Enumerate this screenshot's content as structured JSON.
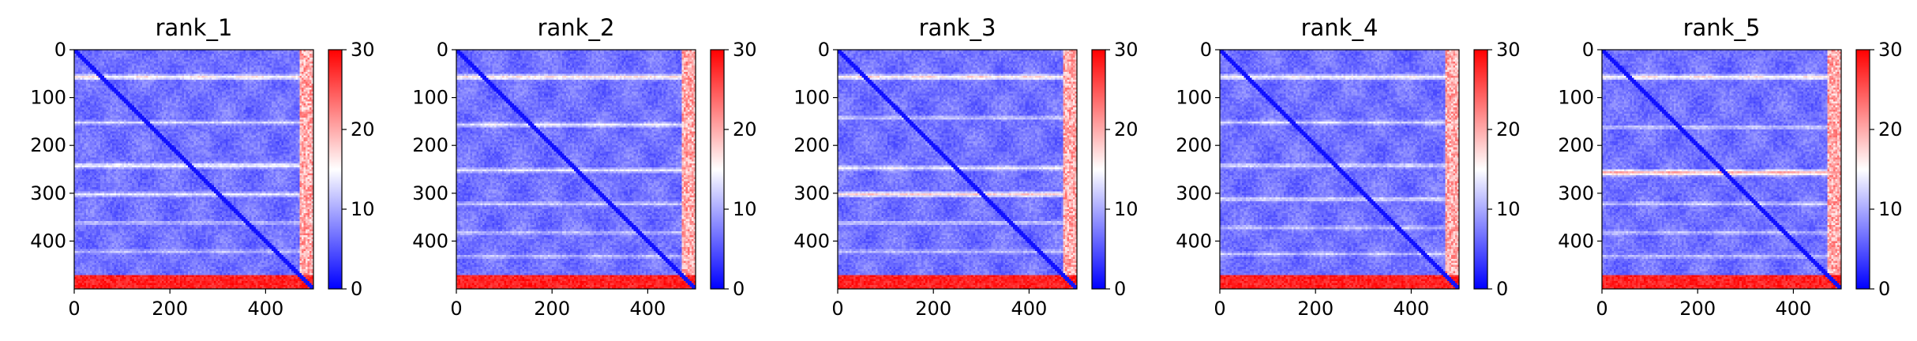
{
  "chart_data": [
    {
      "type": "heatmap",
      "title": "rank_1",
      "xlabel": "",
      "ylabel": "",
      "xlim": [
        0,
        500
      ],
      "ylim": [
        500,
        0
      ],
      "x_ticks": [
        "0",
        "200",
        "400"
      ],
      "y_ticks": [
        "0",
        "100",
        "200",
        "300",
        "400"
      ],
      "colorbar": {
        "range": [
          0,
          30
        ],
        "ticks": [
          "0",
          "10",
          "20",
          "30"
        ],
        "colormap": "bwr"
      },
      "grid": false
    },
    {
      "type": "heatmap",
      "title": "rank_2",
      "xlabel": "",
      "ylabel": "",
      "xlim": [
        0,
        500
      ],
      "ylim": [
        500,
        0
      ],
      "x_ticks": [
        "0",
        "200",
        "400"
      ],
      "y_ticks": [
        "0",
        "100",
        "200",
        "300",
        "400"
      ],
      "colorbar": {
        "range": [
          0,
          30
        ],
        "ticks": [
          "0",
          "10",
          "20",
          "30"
        ],
        "colormap": "bwr"
      },
      "grid": false
    },
    {
      "type": "heatmap",
      "title": "rank_3",
      "xlabel": "",
      "ylabel": "",
      "xlim": [
        0,
        500
      ],
      "ylim": [
        500,
        0
      ],
      "x_ticks": [
        "0",
        "200",
        "400"
      ],
      "y_ticks": [
        "0",
        "100",
        "200",
        "300",
        "400"
      ],
      "colorbar": {
        "range": [
          0,
          30
        ],
        "ticks": [
          "0",
          "10",
          "20",
          "30"
        ],
        "colormap": "bwr"
      },
      "grid": false
    },
    {
      "type": "heatmap",
      "title": "rank_4",
      "xlabel": "",
      "ylabel": "",
      "xlim": [
        0,
        500
      ],
      "ylim": [
        500,
        0
      ],
      "x_ticks": [
        "0",
        "200",
        "400"
      ],
      "y_ticks": [
        "0",
        "100",
        "200",
        "300",
        "400"
      ],
      "colorbar": {
        "range": [
          0,
          30
        ],
        "ticks": [
          "0",
          "10",
          "20",
          "30"
        ],
        "colormap": "bwr"
      },
      "grid": false
    },
    {
      "type": "heatmap",
      "title": "rank_5",
      "xlabel": "",
      "ylabel": "",
      "xlim": [
        0,
        500
      ],
      "ylim": [
        500,
        0
      ],
      "x_ticks": [
        "0",
        "200",
        "400"
      ],
      "y_ticks": [
        "0",
        "100",
        "200",
        "300",
        "400"
      ],
      "colorbar": {
        "range": [
          0,
          30
        ],
        "ticks": [
          "0",
          "10",
          "20",
          "30"
        ],
        "colormap": "bwr"
      },
      "grid": false
    }
  ],
  "colors": {
    "low": "#0000ff",
    "mid": "#ffffff",
    "high": "#ff0000"
  }
}
